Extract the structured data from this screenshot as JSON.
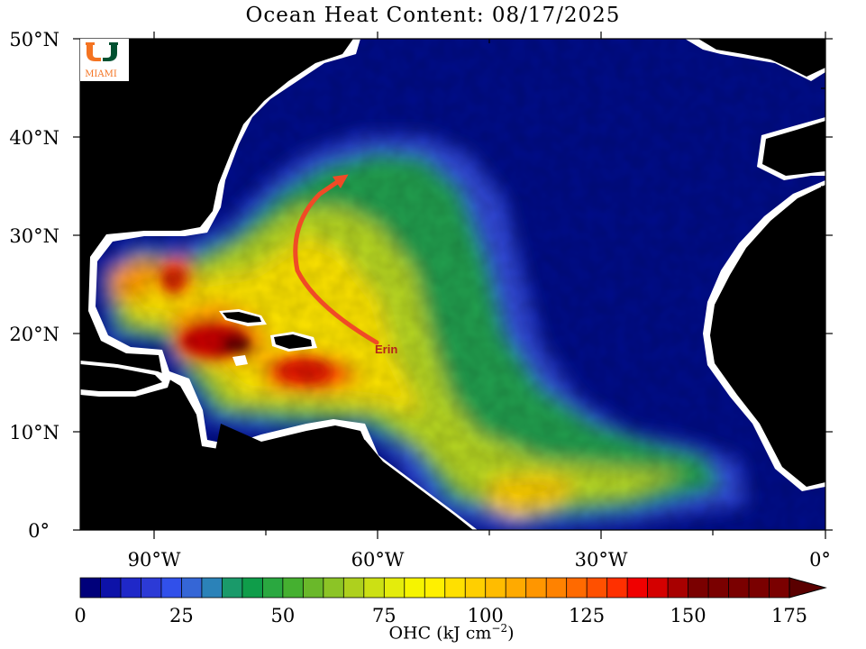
{
  "map": {
    "title": "Ocean Heat Content: 08/17/2025",
    "latitude_labels": [
      "50°N",
      "40°N",
      "30°N",
      "20°N",
      "10°N",
      "0°"
    ],
    "longitude_labels": [
      "90°W",
      "60°W",
      "30°W",
      "0°"
    ],
    "logo": {
      "text": "MIAMI",
      "colors": {
        "green": "#005030",
        "orange": "#f47321"
      }
    },
    "storm": {
      "name": "Erin",
      "track_color": "#f04a26",
      "label_color": "#b4231b"
    },
    "colors": {
      "land": "#000000",
      "deep_ocean": "#000d8a",
      "coast": "#ffffff"
    }
  },
  "colorbar": {
    "min": 0,
    "max": 175,
    "step": 5,
    "tick_labels": [
      "0",
      "25",
      "50",
      "75",
      "100",
      "125",
      "150",
      "175"
    ],
    "title_main": "OHC (kJ cm",
    "title_exp": "−2",
    "title_end": ")",
    "colors": [
      "#00007a",
      "#0d12a8",
      "#1f28c8",
      "#2c3ad6",
      "#3150ea",
      "#3566d6",
      "#2b82b8",
      "#1a9a6a",
      "#0f9d4a",
      "#2aa840",
      "#45b030",
      "#6ab82a",
      "#8cc426",
      "#aed01e",
      "#cce014",
      "#e4ec0c",
      "#f6f400",
      "#fff000",
      "#ffe000",
      "#ffcf00",
      "#ffbc00",
      "#ffaa00",
      "#ff9600",
      "#ff8200",
      "#ff6a00",
      "#ff5000",
      "#ff3000",
      "#f00000",
      "#d40000",
      "#a80000",
      "#7a0000"
    ],
    "overflow_color": "#5a0000"
  }
}
